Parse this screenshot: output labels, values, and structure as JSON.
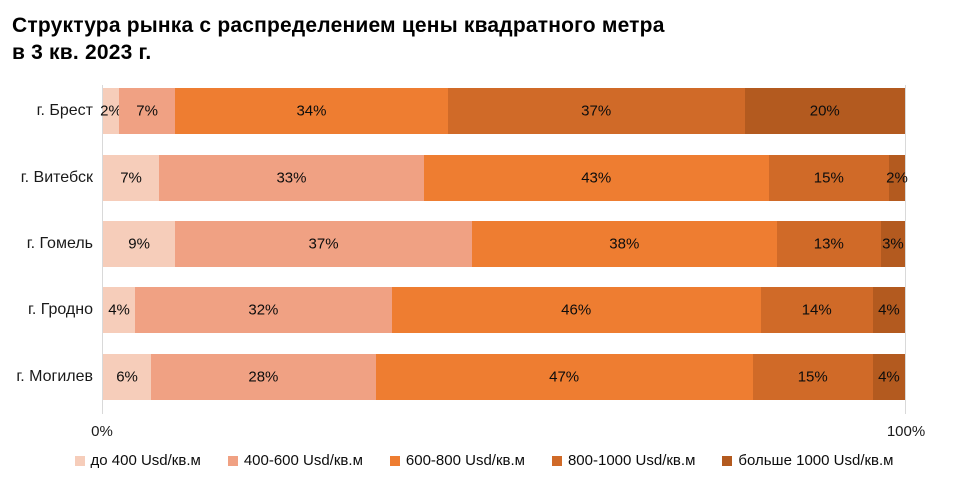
{
  "title": {
    "line1": "Структура рынка с распределением цены квадратного метра",
    "line2": "в 3 кв. 2023 г."
  },
  "chart_data": {
    "type": "bar",
    "variant": "horizontal-stacked-100",
    "title": "Структура рынка с распределением цены квадратного метра в 3 кв. 2023 г.",
    "categories": [
      "г. Брест",
      "г. Витебск",
      "г. Гомель",
      "г. Гродно",
      "г. Могилев"
    ],
    "series": [
      {
        "name": "до 400 Usd/кв.м",
        "color": "#F6CDBA",
        "values": [
          2,
          7,
          9,
          4,
          6
        ]
      },
      {
        "name": "400-600 Usd/кв.м",
        "color": "#F0A183",
        "values": [
          7,
          33,
          37,
          32,
          28
        ]
      },
      {
        "name": "600-800 Usd/кв.м",
        "color": "#EE7D31",
        "values": [
          34,
          43,
          38,
          46,
          47
        ]
      },
      {
        "name": "800-1000 Usd/кв.м",
        "color": "#D06A28",
        "values": [
          37,
          15,
          13,
          14,
          15
        ]
      },
      {
        "name": "больше 1000 Usd/кв.м",
        "color": "#B35A1F",
        "values": [
          20,
          2,
          3,
          4,
          4
        ]
      }
    ],
    "value_suffix": "%",
    "xlabel": "",
    "ylabel": "",
    "x_axis": {
      "range": [
        0,
        100
      ],
      "ticks": [
        "0%",
        "100%"
      ]
    },
    "grid": "vertical-edge-lines-only",
    "grid_color": "#d9d9d9",
    "legend_position": "bottom",
    "data_label_color": "#0d0d0d"
  }
}
